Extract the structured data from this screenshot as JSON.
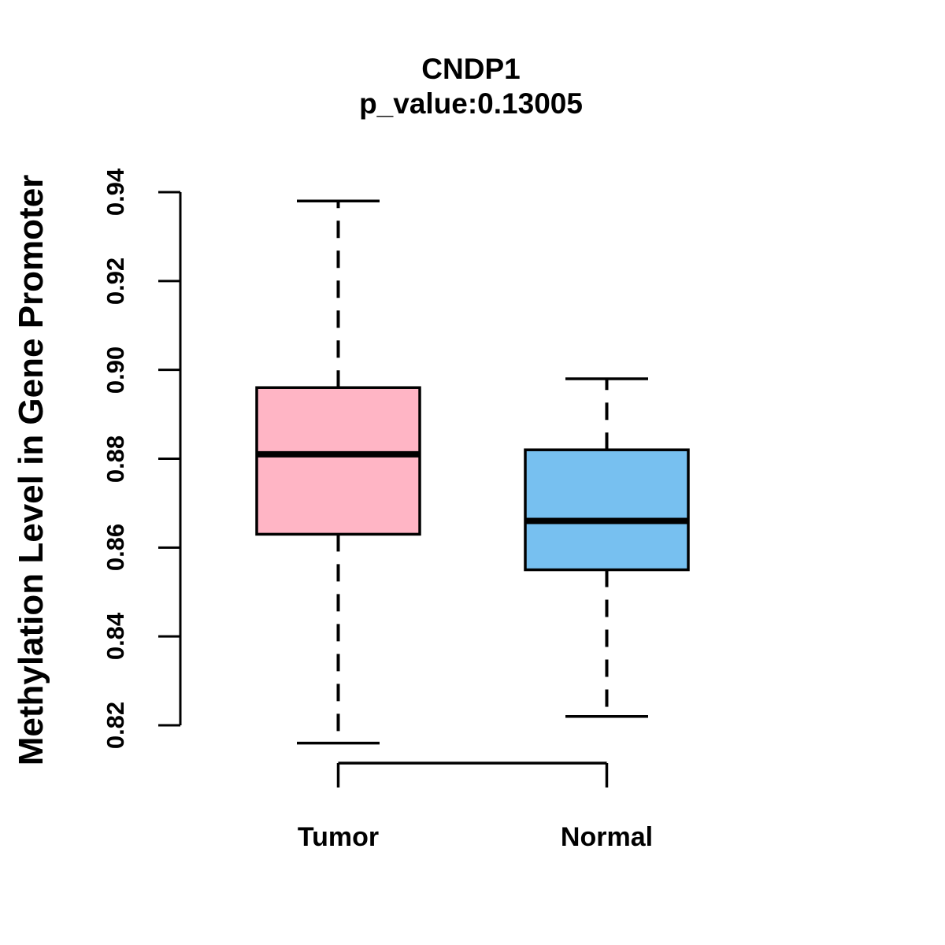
{
  "figure": {
    "background": "#FFFFFF",
    "line_color": "#000000"
  },
  "chart_data": {
    "type": "boxplot",
    "title": "CNDP1",
    "subtitle": "p_value:0.13005",
    "ylabel": "Methylation Level in Gene Promoter",
    "xlabel": "",
    "ylim": [
      0.82,
      0.94
    ],
    "yticks": [
      0.82,
      0.84,
      0.86,
      0.88,
      0.9,
      0.92,
      0.94
    ],
    "ytick_labels": [
      "0.82",
      "0.84",
      "0.86",
      "0.88",
      "0.90",
      "0.92",
      "0.94"
    ],
    "categories": [
      "Tumor",
      "Normal"
    ],
    "grid": false,
    "legend": "none",
    "whisker_style": "dashed",
    "series": [
      {
        "name": "Tumor",
        "color": "#FFB5C5",
        "whisker_low": 0.816,
        "q1": 0.863,
        "median": 0.881,
        "q3": 0.896,
        "whisker_high": 0.938
      },
      {
        "name": "Normal",
        "color": "#77C0F0",
        "whisker_low": 0.822,
        "q1": 0.855,
        "median": 0.866,
        "q3": 0.882,
        "whisker_high": 0.898
      }
    ]
  }
}
